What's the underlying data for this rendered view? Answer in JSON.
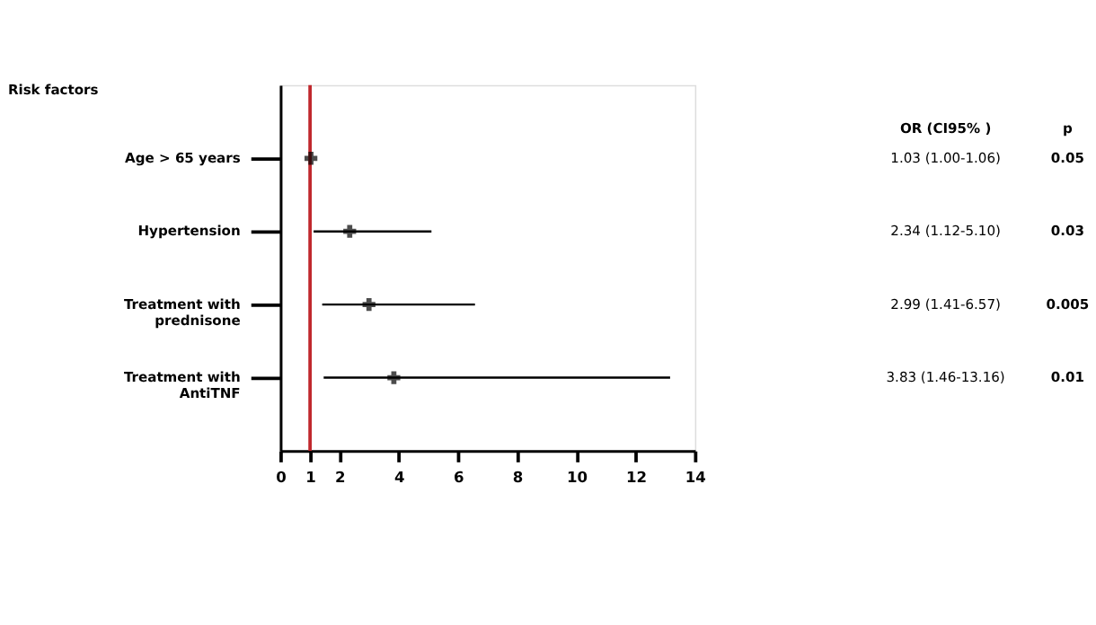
{
  "chart_data": {
    "type": "scatter",
    "ylabel": "Risk factors",
    "categories": [
      "Age > 65 years",
      "Hypertension",
      "Treatment with prednisone",
      "Treatment with AntiTNF"
    ],
    "orientation": "horizontal",
    "values": [
      1.03,
      2.34,
      2.99,
      3.83
    ],
    "errors": [
      [
        1.0,
        1.06
      ],
      [
        1.12,
        5.1
      ],
      [
        1.41,
        6.57
      ],
      [
        1.46,
        13.16
      ]
    ],
    "value_labels": [
      "1.03 (1.00-1.06)",
      "2.34  (1.12-5.10)",
      "2.99 (1.41-6.57)",
      "3.83  (1.46-13.16)"
    ],
    "color": "#000000",
    "marker": "cross",
    "xlim": [
      0,
      14
    ],
    "xticks": [
      0,
      1,
      2,
      4,
      6,
      8,
      10,
      12,
      14
    ],
    "ref_lines": [
      {
        "axis": "x",
        "value": 1,
        "color": "#c0282d"
      }
    ],
    "annotations": [
      "OR  (CI95% )",
      "p",
      "0.05",
      "0.03",
      "0.005",
      "0.01"
    ],
    "grid": false
  }
}
